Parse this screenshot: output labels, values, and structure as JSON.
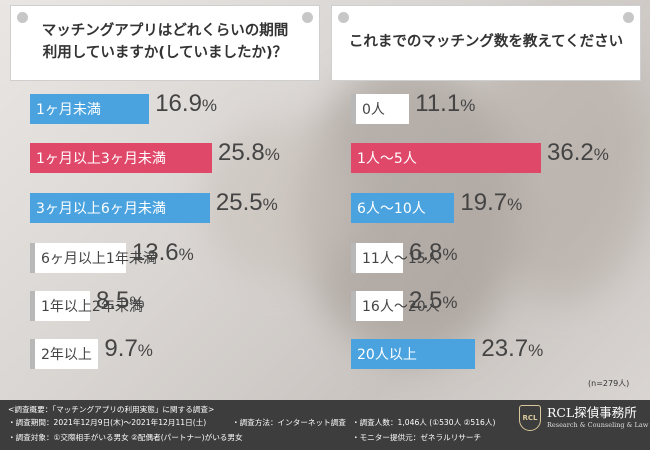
{
  "colors": {
    "blue": "#4aa3df",
    "pink": "#e0486a",
    "white": "#ffffff",
    "gray": "#b8b8b8"
  },
  "chart_data": [
    {
      "type": "bar",
      "title": "マッチングアプリはどれくらいの期間利用していますか(していましたか)？",
      "title_lines": [
        "マッチングアプリはどれくらいの期間",
        "利用していますか(していましたか)？"
      ],
      "categories": [
        "1ヶ月未満",
        "1ヶ月以上3ヶ月未満",
        "3ヶ月以上6ヶ月未満",
        "6ヶ月以上1年未満",
        "1年以上2年未満",
        "2年以上"
      ],
      "values": [
        16.9,
        25.8,
        25.5,
        13.6,
        8.5,
        9.7
      ],
      "value_labels": [
        "16.9",
        "25.8",
        "25.5",
        "13.6",
        "8.5",
        "9.7"
      ],
      "unit": "%",
      "bar_colors": [
        "#4aa3df",
        "#e0486a",
        "#4aa3df",
        "#ffffff",
        "#ffffff",
        "#ffffff"
      ],
      "orientation": "horizontal",
      "xlim": [
        0,
        25.8
      ]
    },
    {
      "type": "bar",
      "title": "これまでのマッチング数を教えてください",
      "categories": [
        "0人",
        "1人～5人",
        "6人～10人",
        "11人～15人",
        "16人～20人",
        "20人以上"
      ],
      "values": [
        11.1,
        36.2,
        19.7,
        6.8,
        2.5,
        23.7
      ],
      "value_labels": [
        "11.1",
        "36.2",
        "19.7",
        "6.8",
        "2.5",
        "23.7"
      ],
      "unit": "%",
      "bar_colors": [
        "#ffffff",
        "#e0486a",
        "#4aa3df",
        "#ffffff",
        "#ffffff",
        "#4aa3df"
      ],
      "orientation": "horizontal",
      "xlim": [
        0,
        36.2
      ],
      "note": "(n=279人)"
    }
  ],
  "footer": {
    "line1": "<調査概要：「マッチングアプリの利用実態」に関する調査>",
    "period": "・調査期間：2021年12月9日(木)～2021年12月11日(土)",
    "method": "・調査方法：インターネット調査",
    "count": "・調査人数：1,046人 (①530人 ②516人)",
    "target": "・調査対象：①交際相手がいる男女 ②配偶者(パートナー)がいる男女",
    "monitor": "・モニター提供元：ゼネラルリサーチ",
    "logo_mark": "RCL",
    "logo_name": "RCL探偵事務所",
    "logo_sub": "Research & Counseling & Law"
  }
}
